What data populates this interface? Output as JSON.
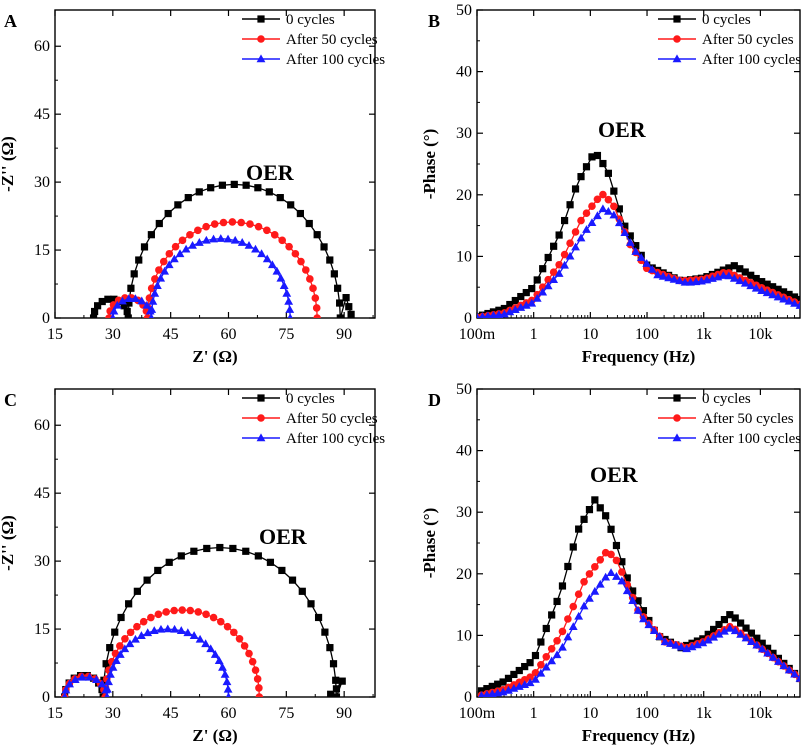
{
  "legend_labels": [
    "0 cycles",
    "After 50 cycles",
    "After 100 cycles"
  ],
  "colors": {
    "series_0": "#000000",
    "series_50": "#ff1a1a",
    "series_100": "#1a1aff"
  },
  "chart_data": [
    {
      "panel": "A",
      "type": "scatter",
      "title": "",
      "annotation": "OER",
      "xlabel": "Z' (Ω)",
      "ylabel": "-Z'' (Ω)",
      "xlim": [
        15,
        98
      ],
      "ylim": [
        0,
        68
      ],
      "xticks": [
        15,
        30,
        45,
        60,
        75,
        90
      ],
      "yticks": [
        0,
        15,
        30,
        45,
        60
      ],
      "legend_position": "top-right",
      "series": [
        {
          "name": "0 cycles",
          "marker": "square",
          "color": "#000000",
          "arcs": [
            {
              "start": 25,
              "end": 34,
              "peak": 4.2,
              "n": 9
            },
            {
              "start": 34,
              "end": 89,
              "peak": 29.5,
              "n": 28
            }
          ],
          "tail": [
            [
              90.5,
              4.5
            ],
            [
              91.2,
              2.5
            ],
            [
              91.8,
              0.8
            ]
          ]
        },
        {
          "name": "After 50 cycles",
          "marker": "circle",
          "color": "#ff1a1a",
          "arcs": [
            {
              "start": 29,
              "end": 39,
              "peak": 4.5,
              "n": 9
            },
            {
              "start": 39,
              "end": 83,
              "peak": 21.2,
              "n": 30
            }
          ]
        },
        {
          "name": "After 100 cycles",
          "marker": "triangle",
          "color": "#1a1aff",
          "arcs": [
            {
              "start": 30,
              "end": 40,
              "peak": 4.3,
              "n": 9
            },
            {
              "start": 40,
              "end": 76,
              "peak": 17.5,
              "n": 30
            }
          ]
        }
      ]
    },
    {
      "panel": "B",
      "type": "line",
      "title": "",
      "annotation": "OER",
      "xlabel": "Frequency (Hz)",
      "ylabel": "-Phase (°)",
      "xscale": "log",
      "xlim": [
        0.1,
        50000
      ],
      "ylim": [
        0,
        50
      ],
      "xticks": [
        0.1,
        1,
        10,
        100,
        1000,
        10000
      ],
      "xticklabels": [
        "100m",
        "1",
        "10",
        "100",
        "1k",
        "10k"
      ],
      "yticks": [
        0,
        10,
        20,
        30,
        40,
        50
      ],
      "legend_position": "top-right",
      "series": [
        {
          "name": "0 cycles",
          "marker": "square",
          "color": "#000000",
          "points": [
            [
              0.1,
              0.2
            ],
            [
              0.3,
              1.5
            ],
            [
              1,
              5
            ],
            [
              3,
              14
            ],
            [
              6,
              22
            ],
            [
              12,
              27
            ],
            [
              20,
              24
            ],
            [
              40,
              15
            ],
            [
              100,
              8.5
            ],
            [
              400,
              6
            ],
            [
              1000,
              6.5
            ],
            [
              3500,
              8.5
            ],
            [
              10000,
              6
            ],
            [
              50000,
              3
            ]
          ]
        },
        {
          "name": "After 50 cycles",
          "marker": "circle",
          "color": "#ff1a1a",
          "points": [
            [
              0.1,
              0.1
            ],
            [
              0.3,
              0.8
            ],
            [
              1,
              3
            ],
            [
              3,
              9
            ],
            [
              7,
              16
            ],
            [
              16,
              20.2
            ],
            [
              25,
              18.5
            ],
            [
              50,
              12
            ],
            [
              100,
              8
            ],
            [
              400,
              6
            ],
            [
              1000,
              6.3
            ],
            [
              2500,
              7.5
            ],
            [
              10000,
              5
            ],
            [
              50000,
              2.2
            ]
          ]
        },
        {
          "name": "After 100 cycles",
          "marker": "triangle",
          "color": "#1a1aff",
          "points": [
            [
              0.1,
              0.1
            ],
            [
              0.3,
              0.6
            ],
            [
              1,
              2.5
            ],
            [
              3,
              7.5
            ],
            [
              8,
              14
            ],
            [
              17,
              17.8
            ],
            [
              28,
              16.5
            ],
            [
              60,
              11
            ],
            [
              150,
              7
            ],
            [
              500,
              5.7
            ],
            [
              1000,
              6
            ],
            [
              2500,
              7
            ],
            [
              10000,
              4.5
            ],
            [
              50000,
              2
            ]
          ]
        }
      ]
    },
    {
      "panel": "C",
      "type": "scatter",
      "title": "",
      "annotation": "OER",
      "xlabel": "Z' (Ω)",
      "ylabel": "-Z'' (Ω)",
      "xlim": [
        15,
        98
      ],
      "ylim": [
        0,
        68
      ],
      "xticks": [
        15,
        30,
        45,
        60,
        75,
        90
      ],
      "yticks": [
        0,
        15,
        30,
        45,
        60
      ],
      "legend_position": "top-right",
      "series": [
        {
          "name": "0 cycles",
          "marker": "square",
          "color": "#000000",
          "arcs": [
            {
              "start": 17.5,
              "end": 27.5,
              "peak": 4.8,
              "n": 9
            },
            {
              "start": 27.5,
              "end": 88,
              "peak": 33,
              "n": 28
            }
          ],
          "tail": [
            [
              89.5,
              3.5
            ],
            [
              88,
              1.8
            ],
            [
              86.5,
              0.6
            ]
          ]
        },
        {
          "name": "After 50 cycles",
          "marker": "circle",
          "color": "#ff1a1a",
          "arcs": [
            {
              "start": 17.5,
              "end": 28,
              "peak": 4.6,
              "n": 9
            },
            {
              "start": 28,
              "end": 68,
              "peak": 19.2,
              "n": 30
            }
          ]
        },
        {
          "name": "After 100 cycles",
          "marker": "triangle",
          "color": "#1a1aff",
          "arcs": [
            {
              "start": 17.5,
              "end": 28.5,
              "peak": 4.4,
              "n": 9
            },
            {
              "start": 28.5,
              "end": 60,
              "peak": 15,
              "n": 28
            }
          ]
        }
      ]
    },
    {
      "panel": "D",
      "type": "line",
      "title": "",
      "annotation": "OER",
      "xlabel": "Frequency (Hz)",
      "ylabel": "-Phase (°)",
      "xscale": "log",
      "xlim": [
        0.1,
        50000
      ],
      "ylim": [
        0,
        50
      ],
      "xticks": [
        0.1,
        1,
        10,
        100,
        1000,
        10000
      ],
      "xticklabels": [
        "100m",
        "1",
        "10",
        "100",
        "1k",
        "10k"
      ],
      "yticks": [
        0,
        10,
        20,
        30,
        40,
        50
      ],
      "legend_position": "top-right",
      "series": [
        {
          "name": "0 cycles",
          "marker": "square",
          "color": "#000000",
          "points": [
            [
              0.12,
              1
            ],
            [
              0.3,
              2.5
            ],
            [
              1,
              6
            ],
            [
              3,
              17
            ],
            [
              6,
              27
            ],
            [
              12,
              32
            ],
            [
              20,
              29
            ],
            [
              50,
              18
            ],
            [
              150,
              10
            ],
            [
              400,
              8
            ],
            [
              1000,
              9.5
            ],
            [
              3000,
              13.5
            ],
            [
              10000,
              9
            ],
            [
              50000,
              3
            ]
          ]
        },
        {
          "name": "After 50 cycles",
          "marker": "circle",
          "color": "#ff1a1a",
          "points": [
            [
              0.12,
              0.3
            ],
            [
              0.3,
              1.2
            ],
            [
              1,
              3.5
            ],
            [
              3,
              10
            ],
            [
              8,
              19
            ],
            [
              20,
              23.8
            ],
            [
              30,
              22
            ],
            [
              70,
              14
            ],
            [
              200,
              9
            ],
            [
              500,
              8
            ],
            [
              1000,
              9
            ],
            [
              3000,
              11.5
            ],
            [
              10000,
              8
            ],
            [
              50000,
              3
            ]
          ]
        },
        {
          "name": "After 100 cycles",
          "marker": "triangle",
          "color": "#1a1aff",
          "points": [
            [
              0.12,
              0.2
            ],
            [
              0.3,
              0.8
            ],
            [
              1,
              2.5
            ],
            [
              3,
              7.5
            ],
            [
              8,
              15
            ],
            [
              22,
              20.3
            ],
            [
              35,
              19
            ],
            [
              80,
              13
            ],
            [
              200,
              9
            ],
            [
              500,
              7.8
            ],
            [
              1000,
              8.8
            ],
            [
              3000,
              11.2
            ],
            [
              10000,
              8
            ],
            [
              50000,
              3
            ]
          ]
        }
      ]
    }
  ]
}
